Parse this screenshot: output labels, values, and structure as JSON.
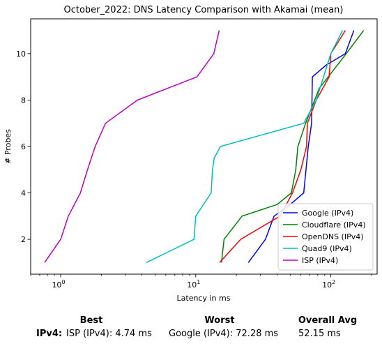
{
  "chart_data": {
    "type": "line",
    "title": "October_2022: DNS Latency Comparison with Akamai (mean)",
    "xlabel": "Latency in ms",
    "ylabel": "# Probes",
    "x_scale": "log",
    "xlim": [
      0.6,
      220
    ],
    "ylim": [
      0.5,
      11.5
    ],
    "x_ticks": [
      {
        "value": 1,
        "label": "10^0"
      },
      {
        "value": 10,
        "label": "10^1"
      },
      {
        "value": 100,
        "label": "10^2"
      }
    ],
    "y_ticks": [
      2,
      4,
      6,
      8,
      10
    ],
    "grid": false,
    "legend_position": "lower-right",
    "series": [
      {
        "name": "Google (IPv4)",
        "color": "#0000ff",
        "x": [
          24.5,
          32.8,
          38.0,
          50.0,
          63.0,
          68.0,
          72.0,
          73.0,
          92.0,
          128.0,
          148.0
        ],
        "y": [
          1,
          2,
          3,
          3.5,
          4,
          6,
          7,
          9,
          9.5,
          10,
          11
        ]
      },
      {
        "name": "Cloudflare (IPv4)",
        "color": "#008000",
        "x": [
          15.5,
          16.2,
          22.0,
          40.0,
          51.0,
          55.0,
          57.0,
          65.0,
          82.0,
          130.0,
          175.0
        ],
        "y": [
          1,
          2,
          3,
          3.5,
          4,
          5,
          6,
          7,
          8.5,
          10,
          11
        ]
      },
      {
        "name": "OpenDNS (IPv4)",
        "color": "#ff0000",
        "x": [
          15.0,
          21.5,
          42.0,
          52.0,
          60.0,
          66.0,
          67.0,
          78.0,
          97.0,
          100.0,
          128.0
        ],
        "y": [
          1,
          2,
          3,
          4,
          5,
          6,
          7,
          8,
          9,
          10,
          11
        ]
      },
      {
        "name": "Quad9 (IPv4)",
        "color": "#00bfbf",
        "x": [
          4.3,
          9.7,
          10.0,
          13.0,
          13.3,
          13.7,
          15.2,
          63.0,
          78.0,
          100.0,
          122.0
        ],
        "y": [
          1,
          2,
          3,
          4,
          5,
          5.5,
          6,
          7,
          8,
          10,
          11
        ]
      },
      {
        "name": "ISP (IPv4)",
        "color": "#bf00bf",
        "x": [
          0.76,
          1.0,
          1.14,
          1.4,
          1.58,
          1.8,
          2.15,
          3.7,
          10.2,
          13.6,
          14.9
        ],
        "y": [
          1,
          2,
          3,
          4,
          5,
          6,
          7,
          8,
          9,
          10,
          11
        ]
      }
    ]
  },
  "summary": {
    "headers": [
      "Best",
      "Worst",
      "Overall Avg"
    ],
    "row_label": "IPv4",
    "best": "ISP (IPv4): 4.74 ms",
    "worst": "Google (IPv4): 72.28 ms",
    "overall_avg": "52.15 ms"
  }
}
